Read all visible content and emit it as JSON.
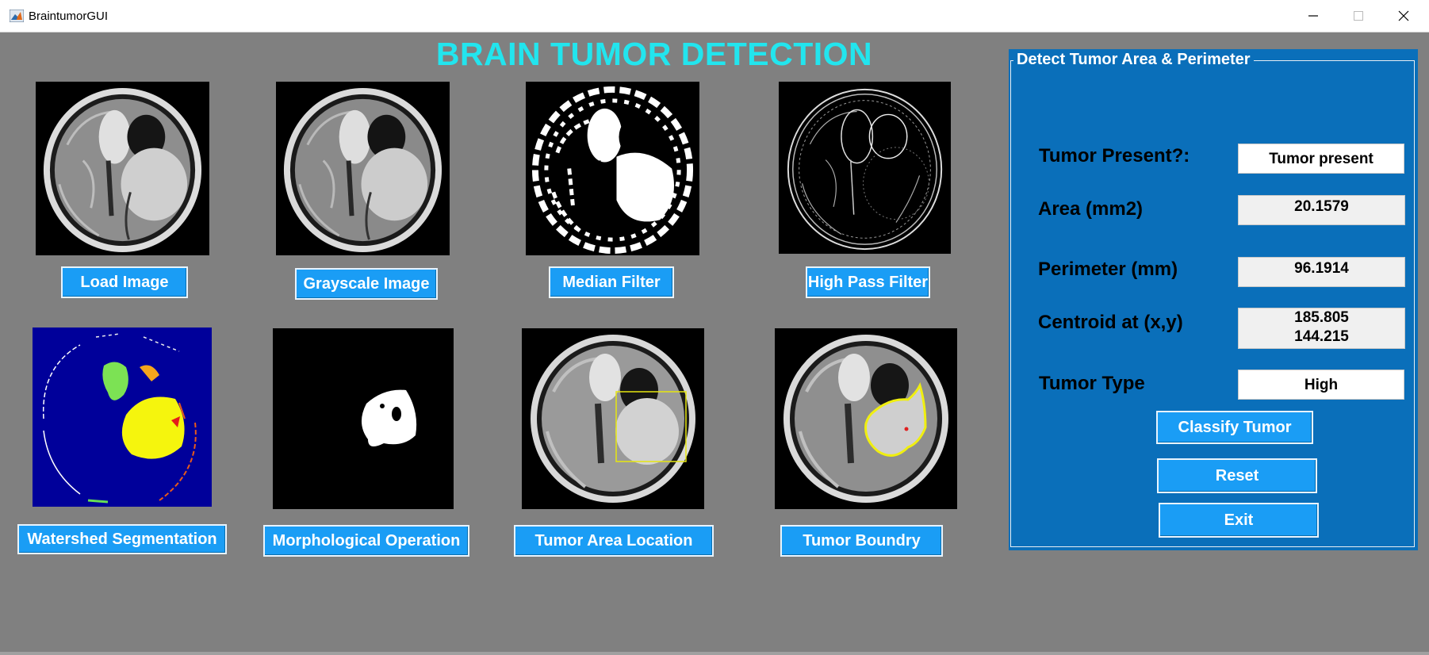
{
  "window": {
    "title": "BraintumorGUI",
    "minimize_glyph": "—",
    "maximize_glyph": "☐",
    "close_glyph": "✕"
  },
  "main_title": "BRAIN TUMOR DETECTION",
  "buttons": {
    "load_image": "Load Image",
    "grayscale_image": "Grayscale Image",
    "median_filter": "Median Filter",
    "high_pass_filter": "High Pass Filter",
    "watershed_segmentation": "Watershed Segmentation",
    "morphological_operation": "Morphological Operation",
    "tumor_area_location": "Tumor Area Location",
    "tumor_boundry": "Tumor Boundry",
    "classify_tumor": "Classify Tumor",
    "reset": "Reset",
    "exit": "Exit"
  },
  "detect_panel": {
    "title": "Detect Tumor Area & Perimeter",
    "tumor_present_label": "Tumor Present?:",
    "tumor_present_value": "Tumor present",
    "area_label": "Area  (mm2)",
    "area_value": "20.1579",
    "perimeter_label": "Perimeter (mm)",
    "perimeter_value": "96.1914",
    "centroid_label": "Centroid at (x,y)",
    "centroid_x": "185.805",
    "centroid_y": "144.215",
    "tumor_type_label": "Tumor Type",
    "tumor_type_value": "High"
  },
  "colors": {
    "background": "#808080",
    "title": "#22e5ee",
    "button": "#1a9df5",
    "panel": "#0a6fba"
  }
}
